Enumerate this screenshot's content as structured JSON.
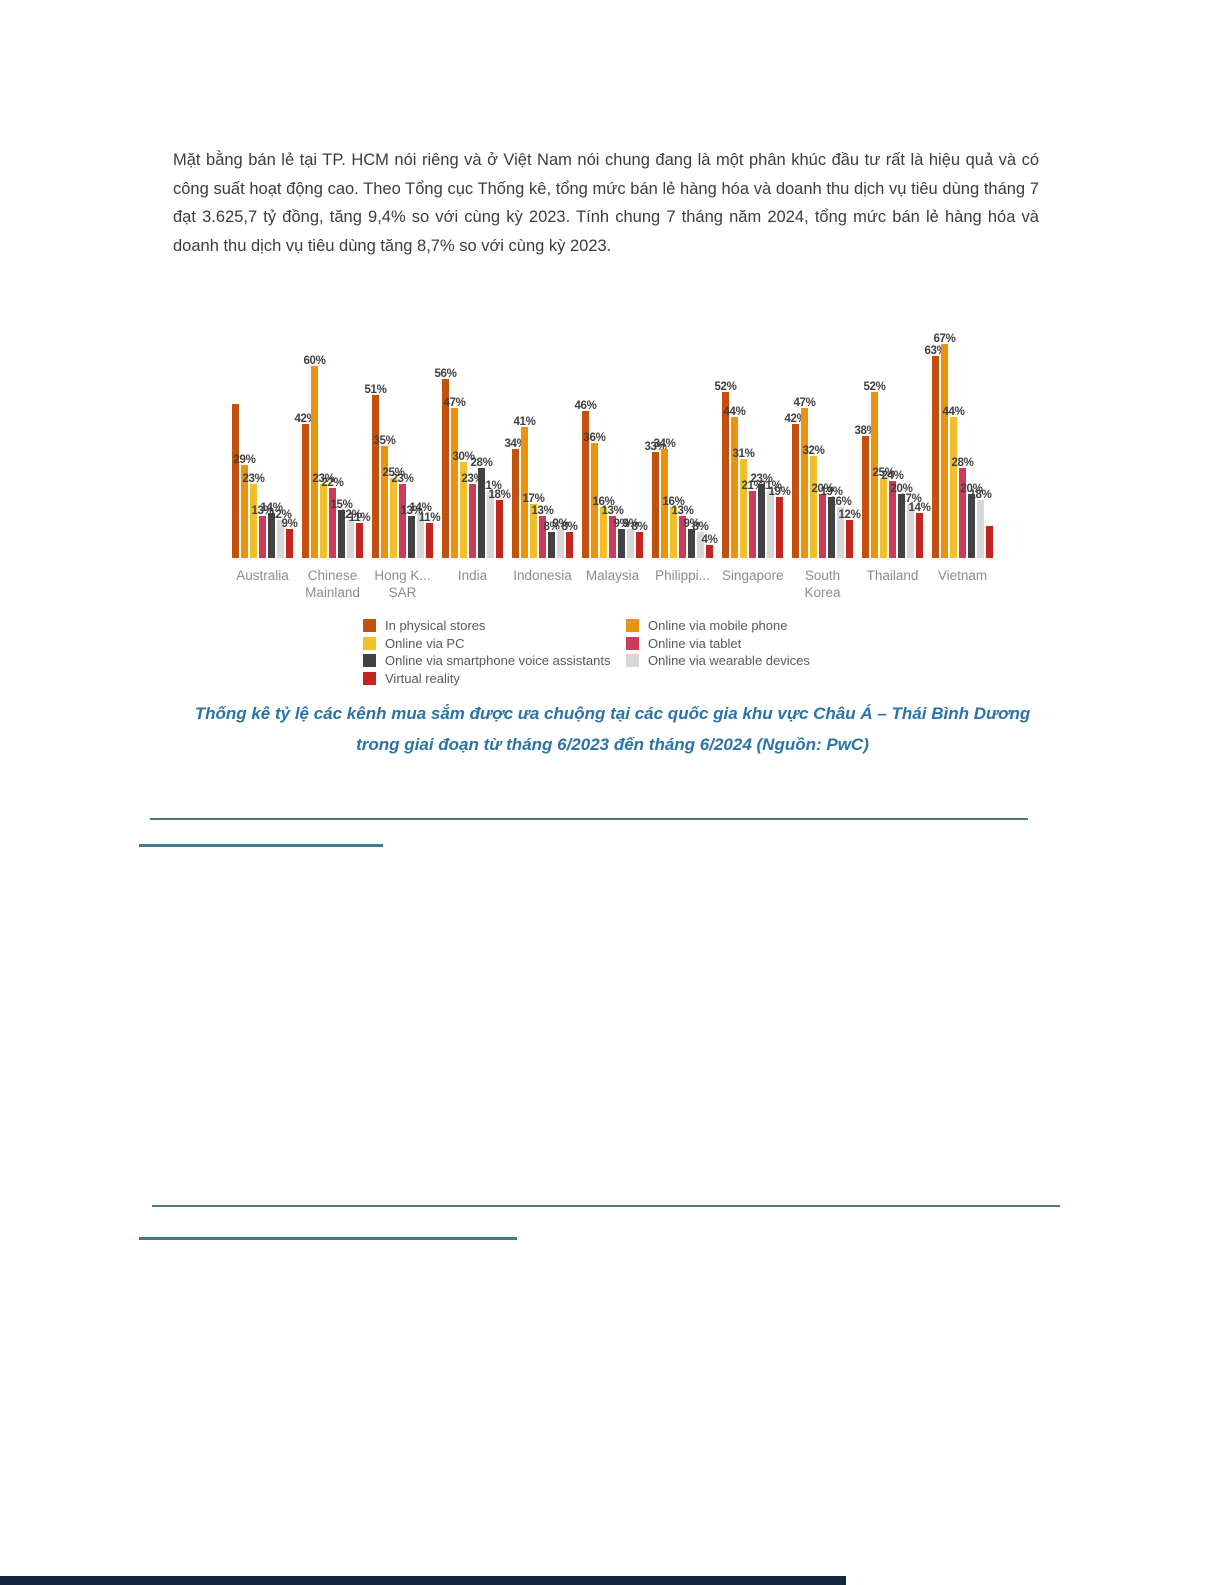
{
  "document": {
    "paragraph": "Mặt bằng bán lẻ tại TP. HCM nói riêng và ở Việt Nam nói chung đang là một phân khúc đầu tư rất là hiệu quả và có công suất hoạt động cao.  Theo Tổng cục Thống kê, tổng mức bán lẻ hàng hóa và doanh thu dịch vụ tiêu dùng tháng 7 đạt 3.625,7 tỷ đồng, tăng 9,4% so với cùng kỳ 2023. Tính chung 7 tháng năm 2024, tổng mức bán lẻ hàng hóa và doanh thu dịch vụ tiêu dùng tăng 8,7% so với cùng kỳ 2023.",
    "caption": {
      "lines": [
        "Thống kê tỷ lệ các kênh mua sắm được ưa chuộng tại các quốc gia khu vực Châu Á – Thái Bình Dương",
        "trong giai đoạn từ tháng 6/2023 đến tháng 6/2024 (Nguồn: PwC)"
      ],
      "color": "#2a73a9"
    },
    "separator_color": "#45798c",
    "bottom_band_color": "#15273e"
  },
  "chart_data": {
    "type": "bar",
    "title": "",
    "unit": "%",
    "ylim": [
      0,
      70
    ],
    "grid": false,
    "value_labels": "above-bars",
    "axis_label_color": "#8c8c8c",
    "value_label_color": "#3f3f3f",
    "categories": [
      "Australia",
      "Chinese\nMainland",
      "Hong K...\nSAR",
      "India",
      "Indonesia",
      "Malaysia",
      "Philippi...",
      "Singapore",
      "South\nKorea",
      "Thailand",
      "Vietnam"
    ],
    "series": [
      {
        "name": "In physical stores",
        "color": "#c2510e",
        "values": [
          48,
          42,
          51,
          56,
          34,
          46,
          33,
          52,
          42,
          38,
          63
        ],
        "labels": [
          "",
          "42%",
          "51%",
          "56%",
          "34%",
          "46%",
          "33%",
          "52%",
          "42%",
          "38%",
          "63%"
        ]
      },
      {
        "name": "Online via mobile phone",
        "color": "#e8940c",
        "values": [
          29,
          60,
          35,
          47,
          41,
          36,
          34,
          44,
          47,
          52,
          67
        ],
        "labels": [
          "29%",
          "60%",
          "35%",
          "47%",
          "41%",
          "36%",
          "34%",
          "44%",
          "47%",
          "52%",
          "67%"
        ]
      },
      {
        "name": "Online via PC",
        "color": "#f2bf29",
        "values": [
          23,
          23,
          25,
          30,
          17,
          16,
          16,
          31,
          32,
          25,
          44
        ],
        "labels": [
          "23%",
          "23%",
          "25%",
          "30%",
          "17%",
          "16%",
          "16%",
          "31%",
          "32%",
          "25%",
          "44%"
        ]
      },
      {
        "name": "Online via tablet",
        "color": "#ce3a5b",
        "values": [
          13,
          22,
          23,
          23,
          13,
          13,
          13,
          21,
          20,
          24,
          28
        ],
        "labels": [
          "13%",
          "22%",
          "23%",
          "23%",
          "13%",
          "13%",
          "13%",
          "21%",
          "20%",
          "24%",
          "28%"
        ]
      },
      {
        "name": "Online via smartphone voice assistants",
        "color": "#424242",
        "values": [
          14,
          15,
          13,
          28,
          8,
          9,
          9,
          23,
          19,
          20,
          20
        ],
        "labels": [
          "14%",
          "15%",
          "13%",
          "28%",
          "8%",
          "9%",
          "9%",
          "23%",
          "19%",
          "20%",
          "20%"
        ]
      },
      {
        "name": "Online via wearable devices",
        "color": "#d8d8d8",
        "values": [
          12,
          12,
          14,
          21,
          9,
          9,
          8,
          21,
          16,
          17,
          18
        ],
        "labels": [
          "12%",
          "12%",
          "14%",
          "21%",
          "9%",
          "9%",
          "8%",
          "21%",
          "16%",
          "17%",
          "18%"
        ]
      },
      {
        "name": "Virtual reality",
        "color": "#c3261c",
        "values": [
          9,
          11,
          11,
          18,
          8,
          8,
          4,
          19,
          12,
          14,
          10
        ],
        "labels": [
          "9%",
          "11%",
          "11%",
          "18%",
          "8%",
          "8%",
          "4%",
          "19%",
          "12%",
          "14%",
          ""
        ]
      }
    ],
    "legend": {
      "position": "bottom",
      "left_column_series": [
        0,
        2,
        4,
        6
      ],
      "right_column_series": [
        1,
        3,
        5
      ]
    }
  }
}
